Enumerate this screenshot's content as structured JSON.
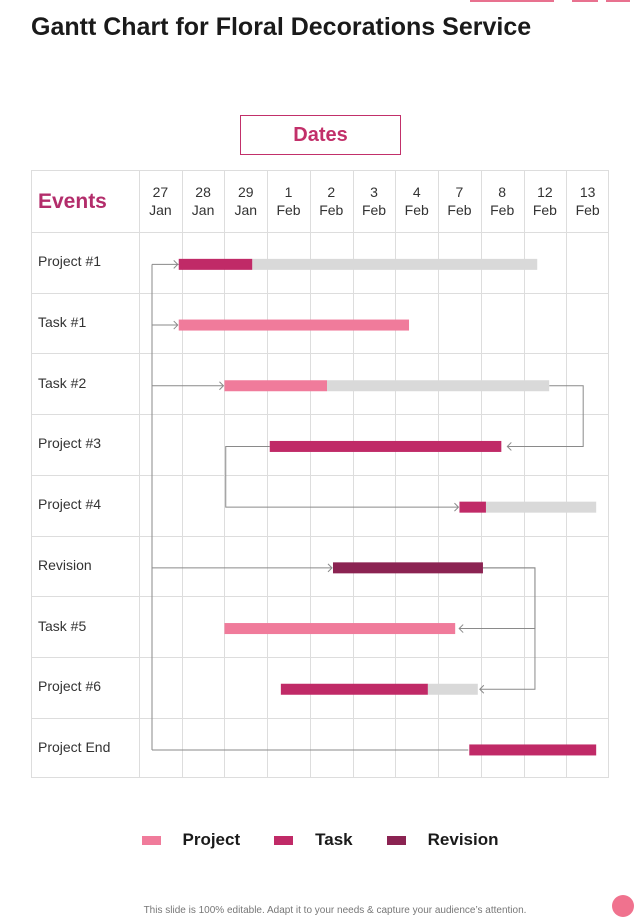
{
  "page": {
    "title": "Gantt Chart for Floral Decorations Service"
  },
  "chart_data": {
    "type": "gantt",
    "header_label": "Dates",
    "row_header": "Events",
    "dates": [
      {
        "day": "27",
        "month": "Jan"
      },
      {
        "day": "28",
        "month": "Jan"
      },
      {
        "day": "29",
        "month": "Jan"
      },
      {
        "day": "1",
        "month": "Feb"
      },
      {
        "day": "2",
        "month": "Feb"
      },
      {
        "day": "3",
        "month": "Feb"
      },
      {
        "day": "4",
        "month": "Feb"
      },
      {
        "day": "7",
        "month": "Feb"
      },
      {
        "day": "8",
        "month": "Feb"
      },
      {
        "day": "12",
        "month": "Feb"
      },
      {
        "day": "13",
        "month": "Feb"
      }
    ],
    "rows": [
      {
        "label": "Project #1",
        "category": "task",
        "start": 0.93,
        "done_end": 2.65,
        "end": 9.32
      },
      {
        "label": "Task #1",
        "category": "project",
        "start": 0.93,
        "done_end": 6.32,
        "end": 6.32
      },
      {
        "label": "Task #2",
        "category": "project",
        "start": 2.0,
        "done_end": 4.4,
        "end": 9.6
      },
      {
        "label": "Project #3",
        "category": "task",
        "start": 3.06,
        "done_end": 8.48,
        "end": 8.48
      },
      {
        "label": "Project #4",
        "category": "task",
        "start": 7.5,
        "done_end": 8.12,
        "end": 10.7
      },
      {
        "label": "Revision",
        "category": "revision",
        "start": 4.54,
        "done_end": 8.05,
        "end": 8.05
      },
      {
        "label": "Task #5",
        "category": "project",
        "start": 2.0,
        "done_end": 7.4,
        "end": 7.4
      },
      {
        "label": "Project #6",
        "category": "task",
        "start": 3.32,
        "done_end": 6.76,
        "end": 7.93
      },
      {
        "label": "Project End",
        "category": "task",
        "start": 7.73,
        "done_end": 10.7,
        "end": 10.7
      }
    ],
    "dependencies": [
      {
        "from": 0,
        "to": 1
      },
      {
        "from": 0,
        "to": 2
      },
      {
        "from": 2,
        "to": 3
      },
      {
        "from": 3,
        "to": 4
      },
      {
        "from": 0,
        "to": 5
      },
      {
        "from": 5,
        "to": 6
      },
      {
        "from": 5,
        "to": 7
      },
      {
        "from": 0,
        "to": 8
      }
    ],
    "legend": [
      {
        "key": "project",
        "label": "Project"
      },
      {
        "key": "task",
        "label": "Task"
      },
      {
        "key": "revision",
        "label": "Revision"
      }
    ],
    "colors": {
      "project": "#f07b9b",
      "task": "#c02a67",
      "revision": "#8b2352",
      "remaining": "#d9d9d9",
      "grid": "#dddddd",
      "connector": "#8a8a8a"
    }
  },
  "footer": {
    "text": "This slide is 100% editable. Adapt it to your needs & capture your audience’s attention."
  }
}
